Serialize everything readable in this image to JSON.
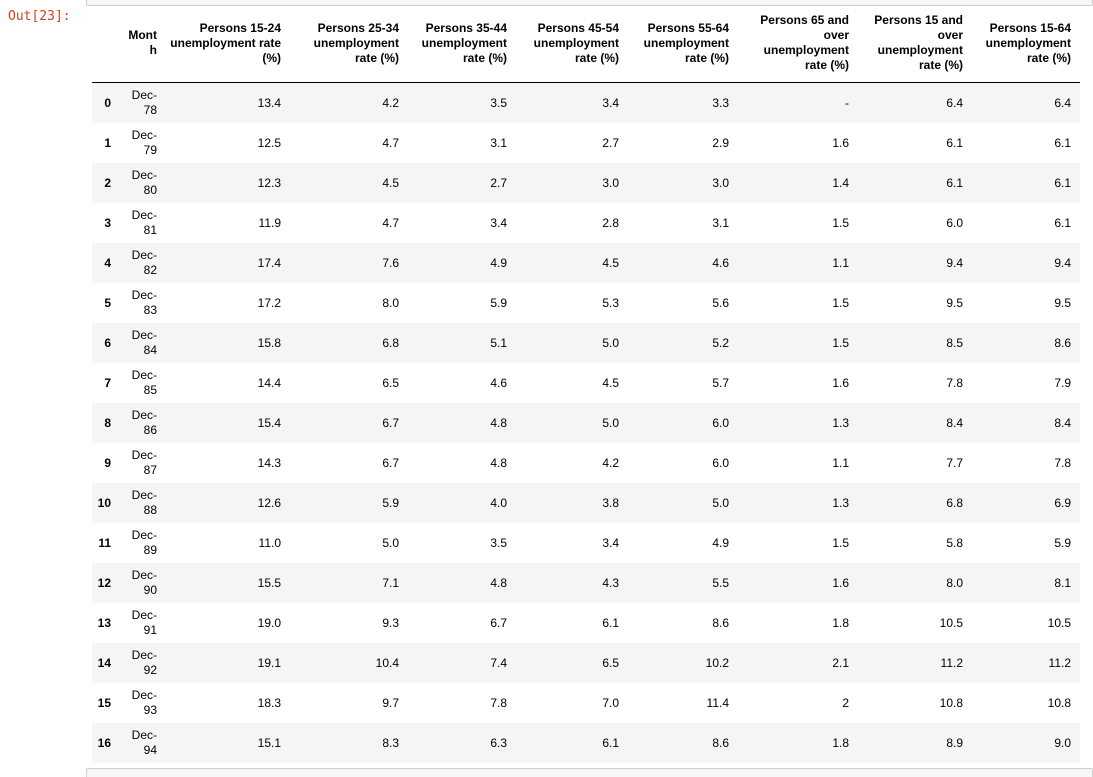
{
  "notebook": {
    "output_prompt": "Out[23]:"
  },
  "colors": {
    "prompt_text": "#d84315",
    "row_stripe": "#f5f5f5",
    "cell_edge_background": "#f7f7f7",
    "cell_edge_border": "#cfcfcf",
    "header_rule": "#000000"
  },
  "table": {
    "index_header": "",
    "columns": [
      "Month",
      "Persons 15-24 unemployment rate (%)",
      "Persons 25-34 unemployment rate (%)",
      "Persons 35-44 unemployment rate (%)",
      "Persons 45-54 unemployment rate (%)",
      "Persons 55-64 unemployment rate (%)",
      "Persons 65 and over unemployment rate (%)",
      "Persons 15 and over unemployment rate (%)",
      "Persons 15-64 unemployment rate (%)"
    ],
    "rows": [
      {
        "index": "0",
        "month": "Dec-78",
        "values": [
          "13.4",
          "4.2",
          "3.5",
          "3.4",
          "3.3",
          "-",
          "6.4",
          "6.4"
        ]
      },
      {
        "index": "1",
        "month": "Dec-79",
        "values": [
          "12.5",
          "4.7",
          "3.1",
          "2.7",
          "2.9",
          "1.6",
          "6.1",
          "6.1"
        ]
      },
      {
        "index": "2",
        "month": "Dec-80",
        "values": [
          "12.3",
          "4.5",
          "2.7",
          "3.0",
          "3.0",
          "1.4",
          "6.1",
          "6.1"
        ]
      },
      {
        "index": "3",
        "month": "Dec-81",
        "values": [
          "11.9",
          "4.7",
          "3.4",
          "2.8",
          "3.1",
          "1.5",
          "6.0",
          "6.1"
        ]
      },
      {
        "index": "4",
        "month": "Dec-82",
        "values": [
          "17.4",
          "7.6",
          "4.9",
          "4.5",
          "4.6",
          "1.1",
          "9.4",
          "9.4"
        ]
      },
      {
        "index": "5",
        "month": "Dec-83",
        "values": [
          "17.2",
          "8.0",
          "5.9",
          "5.3",
          "5.6",
          "1.5",
          "9.5",
          "9.5"
        ]
      },
      {
        "index": "6",
        "month": "Dec-84",
        "values": [
          "15.8",
          "6.8",
          "5.1",
          "5.0",
          "5.2",
          "1.5",
          "8.5",
          "8.6"
        ]
      },
      {
        "index": "7",
        "month": "Dec-85",
        "values": [
          "14.4",
          "6.5",
          "4.6",
          "4.5",
          "5.7",
          "1.6",
          "7.8",
          "7.9"
        ]
      },
      {
        "index": "8",
        "month": "Dec-86",
        "values": [
          "15.4",
          "6.7",
          "4.8",
          "5.0",
          "6.0",
          "1.3",
          "8.4",
          "8.4"
        ]
      },
      {
        "index": "9",
        "month": "Dec-87",
        "values": [
          "14.3",
          "6.7",
          "4.8",
          "4.2",
          "6.0",
          "1.1",
          "7.7",
          "7.8"
        ]
      },
      {
        "index": "10",
        "month": "Dec-88",
        "values": [
          "12.6",
          "5.9",
          "4.0",
          "3.8",
          "5.0",
          "1.3",
          "6.8",
          "6.9"
        ]
      },
      {
        "index": "11",
        "month": "Dec-89",
        "values": [
          "11.0",
          "5.0",
          "3.5",
          "3.4",
          "4.9",
          "1.5",
          "5.8",
          "5.9"
        ]
      },
      {
        "index": "12",
        "month": "Dec-90",
        "values": [
          "15.5",
          "7.1",
          "4.8",
          "4.3",
          "5.5",
          "1.6",
          "8.0",
          "8.1"
        ]
      },
      {
        "index": "13",
        "month": "Dec-91",
        "values": [
          "19.0",
          "9.3",
          "6.7",
          "6.1",
          "8.6",
          "1.8",
          "10.5",
          "10.5"
        ]
      },
      {
        "index": "14",
        "month": "Dec-92",
        "values": [
          "19.1",
          "10.4",
          "7.4",
          "6.5",
          "10.2",
          "2.1",
          "11.2",
          "11.2"
        ]
      },
      {
        "index": "15",
        "month": "Dec-93",
        "values": [
          "18.3",
          "9.7",
          "7.8",
          "7.0",
          "11.4",
          "2",
          "10.8",
          "10.8"
        ]
      },
      {
        "index": "16",
        "month": "Dec-94",
        "values": [
          "15.1",
          "8.3",
          "6.3",
          "6.1",
          "8.6",
          "1.8",
          "8.9",
          "9.0"
        ]
      }
    ]
  }
}
